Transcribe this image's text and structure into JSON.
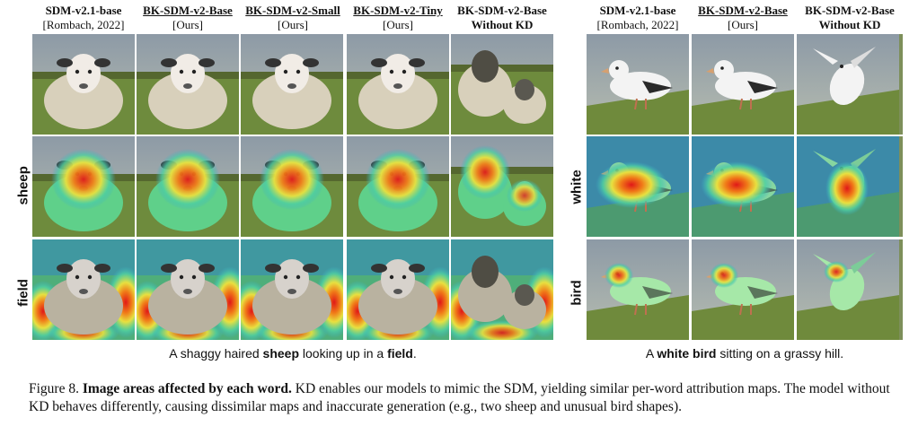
{
  "left_panel": {
    "columns": [
      {
        "name": "SDM-v2.1-base",
        "sub": "[Rombach, 2022]",
        "underline": false
      },
      {
        "name": "BK-SDM-v2-Base",
        "sub": "[Ours]",
        "underline": true
      },
      {
        "name": "BK-SDM-v2-Small",
        "sub": "[Ours]",
        "underline": true
      },
      {
        "name": "BK-SDM-v2-Tiny",
        "sub": "[Ours]",
        "underline": true
      },
      {
        "name": "BK-SDM-v2-Base",
        "sub": "Without KD",
        "underline": false
      }
    ],
    "rows": [
      "sheep",
      "field"
    ],
    "caption": {
      "pre": "A shaggy haired ",
      "word1": "sheep",
      "mid": " looking up in a ",
      "word2": "field",
      "post": "."
    }
  },
  "right_panel": {
    "columns": [
      {
        "name": "SDM-v2.1-base",
        "sub": "[Rombach, 2022]",
        "underline": false
      },
      {
        "name": "BK-SDM-v2-Base",
        "sub": "[Ours]",
        "underline": true
      },
      {
        "name": "BK-SDM-v2-Base",
        "sub": "Without KD",
        "underline": false
      }
    ],
    "rows": [
      "white",
      "bird"
    ],
    "caption": {
      "pre": "A ",
      "word1": "white bird",
      "post": " sitting on a grassy hill."
    }
  },
  "figure_caption": {
    "label": "Figure 8.",
    "title": "Image areas affected by each word.",
    "body": " KD enables our models to mimic the SDM, yielding similar per-word attribution maps. The model without KD behaves differently, causing dissimilar maps and inaccurate generation (e.g., two sheep and unusual bird shapes)."
  },
  "colors": {
    "grass": "#6f8a3c",
    "sky": "#9aa3ad",
    "heat_hot": "#e02020",
    "heat_mid": "#f0e040",
    "heat_cool": "#40c8a0"
  }
}
